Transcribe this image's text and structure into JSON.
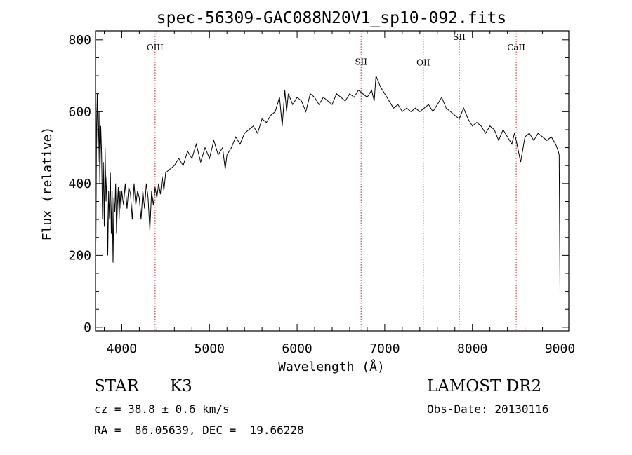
{
  "chart_data": {
    "type": "line",
    "title": "spec-56309-GAC088N20V1_sp10-092.fits",
    "xlabel": "Wavelength (Å)",
    "ylabel": "Flux (relative)",
    "xlim": [
      3700,
      9100
    ],
    "ylim": [
      -10,
      825
    ],
    "xticks": [
      4000,
      5000,
      6000,
      7000,
      8000,
      9000
    ],
    "xtick_labels": [
      "4000",
      "5000",
      "6000",
      "7000",
      "8000",
      "9000"
    ],
    "yticks": [
      0,
      200,
      400,
      600,
      800
    ],
    "ytick_labels": [
      "0",
      "200",
      "400",
      "600",
      "800"
    ],
    "grid": false,
    "lines": [
      {
        "label": "OIII",
        "wavelength": 4380,
        "label_flux": 770
      },
      {
        "label": "SII",
        "wavelength": 6730,
        "label_flux": 730
      },
      {
        "label": "OII",
        "wavelength": 7440,
        "label_flux": 728
      },
      {
        "label": "SII",
        "wavelength": 7850,
        "label_flux": 800
      },
      {
        "label": "CaII",
        "wavelength": 8500,
        "label_flux": 770
      }
    ],
    "series": [
      {
        "x": [
          3705,
          3712,
          3720,
          3730,
          3740,
          3750,
          3760,
          3770,
          3780,
          3790,
          3800,
          3810,
          3820,
          3830,
          3840,
          3850,
          3860,
          3870,
          3880,
          3890,
          3900,
          3910,
          3920,
          3930,
          3940,
          3950,
          3960,
          3970,
          3980,
          3990,
          4000,
          4020,
          4040,
          4060,
          4080,
          4100,
          4120,
          4140,
          4160,
          4180,
          4200,
          4220,
          4240,
          4260,
          4280,
          4300,
          4320,
          4340,
          4360,
          4380,
          4400,
          4420,
          4440,
          4460,
          4480,
          4500,
          4550,
          4600,
          4650,
          4700,
          4750,
          4800,
          4850,
          4900,
          4950,
          5000,
          5050,
          5100,
          5150,
          5180,
          5200,
          5250,
          5300,
          5350,
          5400,
          5450,
          5500,
          5550,
          5600,
          5650,
          5700,
          5750,
          5800,
          5830,
          5860,
          5880,
          5900,
          5950,
          6000,
          6050,
          6100,
          6150,
          6200,
          6250,
          6300,
          6350,
          6400,
          6450,
          6500,
          6550,
          6600,
          6650,
          6700,
          6750,
          6800,
          6850,
          6880,
          6900,
          6950,
          7000,
          7050,
          7100,
          7150,
          7200,
          7250,
          7300,
          7350,
          7400,
          7450,
          7500,
          7550,
          7600,
          7650,
          7700,
          7750,
          7800,
          7850,
          7900,
          7950,
          8000,
          8050,
          8100,
          8150,
          8200,
          8250,
          8300,
          8350,
          8400,
          8450,
          8480,
          8500,
          8550,
          8600,
          8650,
          8700,
          8750,
          8800,
          8850,
          8900,
          8950,
          8980,
          8990,
          9000
        ],
        "y": [
          240,
          560,
          650,
          460,
          600,
          400,
          560,
          480,
          300,
          460,
          280,
          500,
          350,
          420,
          200,
          380,
          300,
          430,
          260,
          380,
          180,
          360,
          320,
          400,
          260,
          340,
          390,
          300,
          380,
          330,
          380,
          340,
          400,
          330,
          390,
          370,
          300,
          400,
          340,
          380,
          360,
          300,
          380,
          330,
          400,
          360,
          270,
          380,
          340,
          390,
          360,
          400,
          370,
          420,
          380,
          430,
          440,
          450,
          470,
          450,
          490,
          470,
          510,
          460,
          500,
          470,
          520,
          480,
          500,
          440,
          480,
          500,
          530,
          510,
          540,
          550,
          560,
          540,
          580,
          570,
          590,
          600,
          640,
          560,
          660,
          600,
          650,
          620,
          640,
          630,
          600,
          650,
          640,
          620,
          640,
          630,
          620,
          650,
          640,
          630,
          650,
          640,
          660,
          650,
          640,
          660,
          630,
          700,
          670,
          650,
          630,
          610,
          620,
          600,
          610,
          600,
          610,
          600,
          610,
          620,
          600,
          620,
          640,
          610,
          600,
          590,
          580,
          610,
          580,
          560,
          570,
          560,
          540,
          560,
          550,
          520,
          550,
          530,
          510,
          540,
          520,
          460,
          530,
          540,
          520,
          540,
          530,
          520,
          530,
          510,
          490,
          480,
          100
        ]
      }
    ]
  },
  "info": {
    "object_type": "STAR",
    "subclass": "K3",
    "survey": "LAMOST DR2",
    "cz": "cz = 38.8 ± 0.6 km/s",
    "obs_date": "Obs-Date: 20130116",
    "coords": "RA =  86.05639, DEC =  19.66228"
  }
}
